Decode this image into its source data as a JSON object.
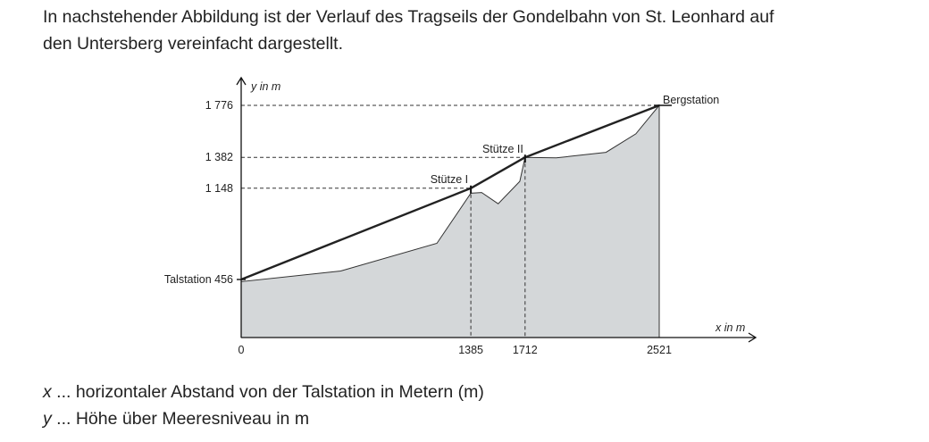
{
  "intro": {
    "line1": "In nachstehender Abbildung ist der Verlauf des Tragseils der Gondelbahn von St. Leonhard auf",
    "line2": "den Untersberg vereinfacht dargestellt."
  },
  "chart_data": {
    "type": "line",
    "x_label": "x in m",
    "y_label": "y in m",
    "x_ticks": [
      0,
      1385,
      1712,
      2521
    ],
    "x_tick_labels": [
      "0",
      "1385",
      "1712",
      "2521"
    ],
    "y_ticks": [
      456,
      1148,
      1382,
      1776
    ],
    "y_tick_labels": [
      "456",
      "1 148",
      "1 382",
      "1 776"
    ],
    "cable": [
      [
        0,
        456
      ],
      [
        1385,
        1148
      ],
      [
        1712,
        1382
      ],
      [
        2521,
        1776
      ]
    ],
    "terrain": [
      [
        0,
        440
      ],
      [
        600,
        520
      ],
      [
        1180,
        730
      ],
      [
        1385,
        1110
      ],
      [
        1450,
        1115
      ],
      [
        1550,
        1030
      ],
      [
        1680,
        1200
      ],
      [
        1712,
        1382
      ],
      [
        1900,
        1378
      ],
      [
        2200,
        1420
      ],
      [
        2380,
        1560
      ],
      [
        2521,
        1776
      ]
    ],
    "points": [
      {
        "name": "Talstation",
        "x": 0,
        "y": 456,
        "label": "Talstation 456"
      },
      {
        "name": "Stütze I",
        "x": 1385,
        "y": 1148,
        "label": "Stütze I"
      },
      {
        "name": "Stütze II",
        "x": 1712,
        "y": 1382,
        "label": "Stütze II"
      },
      {
        "name": "Bergstation",
        "x": 2521,
        "y": 1776,
        "label": "Bergstation"
      }
    ],
    "terrain_color": "#d4d7d9",
    "line_color": "#222222"
  },
  "legend": {
    "x_var": "x",
    "x_text": " ... horizontaler Abstand von der Talstation in Metern (m)",
    "y_var": "y",
    "y_text": " ... Höhe über Meeresniveau in m"
  }
}
